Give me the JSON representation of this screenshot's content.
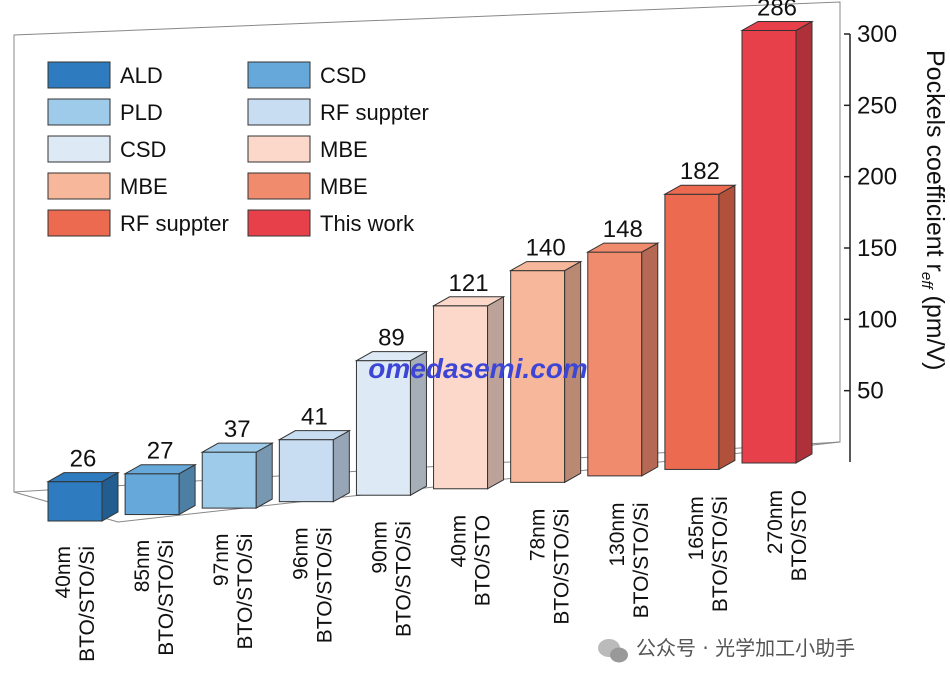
{
  "chart_data": {
    "type": "bar",
    "title": "",
    "xlabel": "",
    "ylabel": "Pockels coefficient r",
    "ylabel_subscript": "eff",
    "ylabel_unit": " (pm/V)",
    "yticks": [
      50,
      100,
      150,
      200,
      250,
      300
    ],
    "ylim": [
      0,
      300
    ],
    "grid": false,
    "legend_placement": "top-left",
    "legend": [
      {
        "label": "ALD",
        "color": "#2e7cbf"
      },
      {
        "label": "CSD",
        "color": "#66a8da"
      },
      {
        "label": "PLD",
        "color": "#9fcbea"
      },
      {
        "label": "RF suppter",
        "color": "#c9ddf2"
      },
      {
        "label": "CSD",
        "color": "#dde9f5"
      },
      {
        "label": "MBE",
        "color": "#fbd8ca"
      },
      {
        "label": "MBE",
        "color": "#f7b79a"
      },
      {
        "label": "MBE",
        "color": "#f18b6e"
      },
      {
        "label": "RF suppter",
        "color": "#ec6a4f"
      },
      {
        "label": "This work",
        "color": "#e8404a"
      }
    ],
    "categories": [
      [
        "40nm",
        "BTO/STO/Si"
      ],
      [
        "85nm",
        "BTO/STO/Si"
      ],
      [
        "97nm",
        "BTO/STO/Si"
      ],
      [
        "96nm",
        "BTO/STO/Si"
      ],
      [
        "90nm",
        "BTO/STO/Si"
      ],
      [
        "40nm",
        "BTO/STO"
      ],
      [
        "78nm",
        "BTO/STO/Si"
      ],
      [
        "130nm",
        "BTO/STO/Si"
      ],
      [
        "165nm",
        "BTO/STO/Si"
      ],
      [
        "270nm",
        "BTO/STO"
      ]
    ],
    "values": [
      26,
      27,
      37,
      41,
      89,
      121,
      140,
      148,
      182,
      286
    ],
    "bar_colors": [
      "#2e7cbf",
      "#66a8da",
      "#9fcbea",
      "#c9ddf2",
      "#dde9f5",
      "#fbd8ca",
      "#f7b79a",
      "#f18b6e",
      "#ec6a4f",
      "#e8404a"
    ]
  },
  "watermark": "omedasemi.com",
  "credit": "公众号 · 光学加工小助手"
}
